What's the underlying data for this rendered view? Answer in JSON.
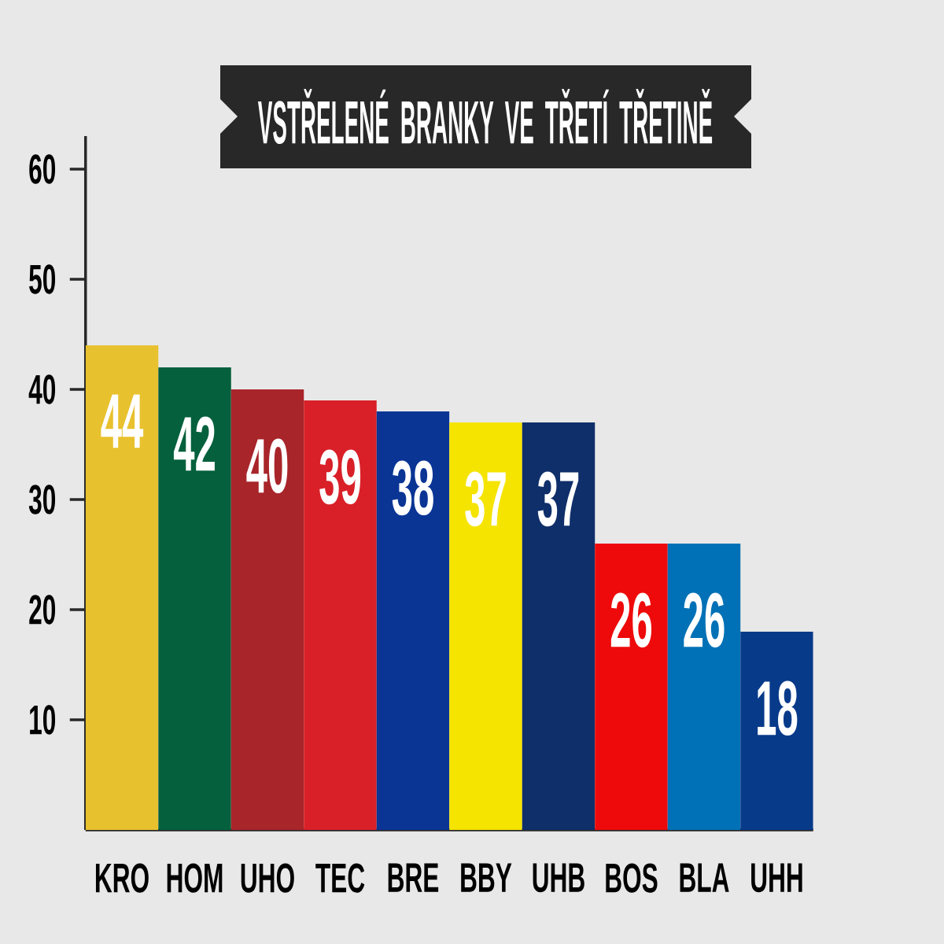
{
  "chart_data": {
    "type": "bar",
    "title": "VSTŘELENÉ BRANKY VE TŘETÍ TŘETINĚ",
    "categories": [
      "KRO",
      "HOM",
      "UHO",
      "TEC",
      "BRE",
      "BBY",
      "UHB",
      "BOS",
      "BLA",
      "UHH"
    ],
    "values": [
      44,
      42,
      40,
      39,
      38,
      37,
      37,
      26,
      26,
      18
    ],
    "colors": [
      "#e8c12e",
      "#04603d",
      "#a8252a",
      "#d92028",
      "#0a3595",
      "#f5e300",
      "#0f2f6a",
      "#ee0a0a",
      "#0071b6",
      "#083a8a"
    ],
    "ylim": [
      0,
      63
    ],
    "yticks": [
      10,
      20,
      30,
      40,
      50,
      60
    ],
    "data_labels": true
  }
}
